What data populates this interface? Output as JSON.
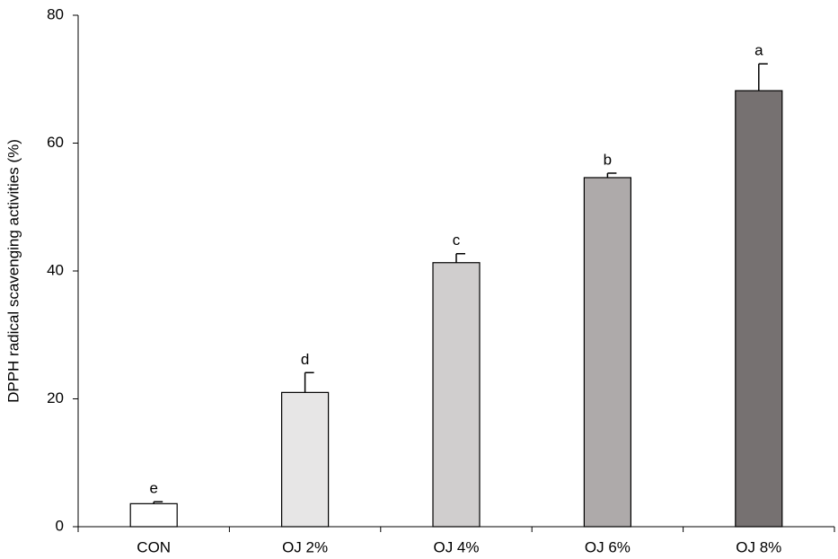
{
  "chart_data": {
    "type": "bar",
    "y_label": "DPPH radical scavenging activities (%)",
    "categories": [
      "CON",
      "OJ 2%",
      "OJ 4%",
      "OJ 6%",
      "OJ 8%"
    ],
    "values": [
      3.6,
      21.0,
      41.3,
      54.6,
      68.2
    ],
    "errors": [
      0.3,
      3.1,
      1.4,
      0.7,
      4.2
    ],
    "annotations": [
      "e",
      "d",
      "c",
      "b",
      "a"
    ],
    "colors": [
      "#ffffff",
      "#e7e6e6",
      "#d0cece",
      "#aeaaaa",
      "#767171"
    ],
    "ylim": [
      0,
      80
    ],
    "yticks": [
      0,
      20,
      40,
      60,
      80
    ],
    "grid": false
  }
}
